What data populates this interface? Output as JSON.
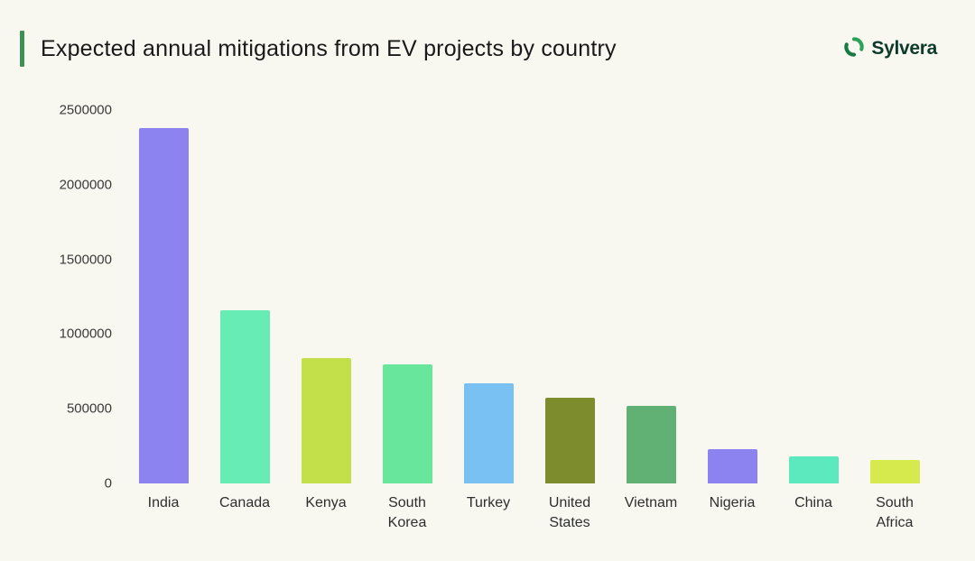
{
  "header": {
    "title": "Expected annual mitigations from EV projects by country",
    "accent_color": "#3d9155",
    "logo_text": "Sylvera",
    "logo_green": "#2aa154",
    "logo_dark_green": "#0d3a2a"
  },
  "chart_data": {
    "type": "bar",
    "title": "Expected annual mitigations from EV projects by country",
    "categories": [
      "India",
      "Canada",
      "Kenya",
      "South Korea",
      "Turkey",
      "United States",
      "Vietnam",
      "Nigeria",
      "China",
      "South Africa"
    ],
    "values": [
      2380000,
      1160000,
      840000,
      800000,
      670000,
      575000,
      520000,
      230000,
      180000,
      160000
    ],
    "bar_colors": [
      "#8c83f0",
      "#66ecb4",
      "#c3e04b",
      "#67e69c",
      "#78c1f2",
      "#7d8c2c",
      "#61b175",
      "#8c83f0",
      "#5ce9bd",
      "#d6ea4e"
    ],
    "xlabel": "",
    "ylabel": "",
    "ylim": [
      0,
      2500000
    ],
    "yticks": [
      0,
      500000,
      1000000,
      1500000,
      2000000,
      2500000
    ],
    "ytick_labels": [
      "0",
      "500000",
      "1000000",
      "1500000",
      "2000000",
      "2500000"
    ],
    "grid": false,
    "legend": false,
    "background": "#f8f8f1"
  }
}
